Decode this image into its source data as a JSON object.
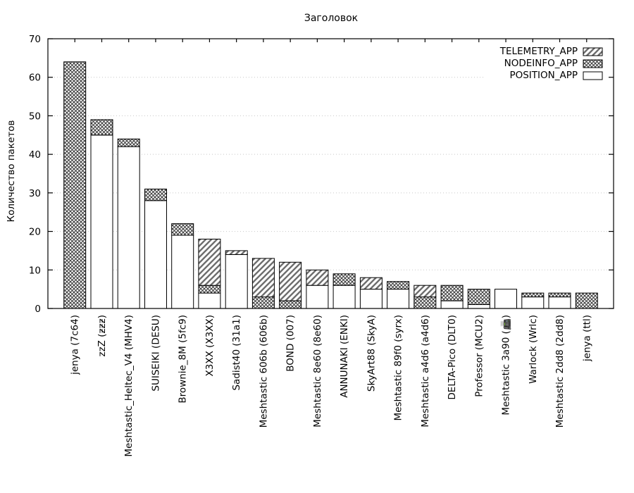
{
  "chart_data": {
    "type": "bar",
    "stacked": true,
    "title": "Заголовок",
    "ylabel": "Количество пакетов",
    "xlabel": "",
    "ylim": [
      0,
      70
    ],
    "yticks": [
      0,
      10,
      20,
      30,
      40,
      50,
      60,
      70
    ],
    "grid": "dotted-horizontal",
    "legend": {
      "position": "top-right",
      "entries": [
        "TELEMETRY_APP",
        "NODEINFO_APP",
        "POSITION_APP"
      ]
    },
    "categories": [
      "jenya (7c64)",
      "zzZ (ƶƶƶ)",
      "Meshtastic_Heltec_V4 (MHV4)",
      "SUISEIKI (DESU)",
      "Brownie_8M (5fc9)",
      "X3XX (X3XX)",
      "Sadist40 (31a1)",
      "Meshtastic 606b (606b)",
      "BOND (007)",
      "Meshtastic 8e60 (8e60)",
      "ANNUNAKI (ENKI)",
      "SkyArt88 (SkyA)",
      "Meshtastic 89f0 (syrx)",
      "Meshtastic a4d6 (a4d6)",
      "DELTA-Pico (DLT0)",
      "Professor (MCU2)",
      "Meshtastic 3a90 (📠)",
      "Warlock (Wrlc)",
      "Meshtastic 2dd8 (2dd8)",
      "jenya (ttl)"
    ],
    "series": [
      {
        "name": "TELEMETRY_APP",
        "pattern": "diagonal-hatch",
        "values": [
          0,
          0,
          0,
          0,
          0,
          12,
          1,
          10,
          10,
          4,
          0,
          3,
          0,
          3,
          0,
          0,
          0,
          0,
          0,
          0
        ]
      },
      {
        "name": "NODEINFO_APP",
        "pattern": "crosshatch",
        "values": [
          64,
          4,
          2,
          3,
          3,
          2,
          0,
          3,
          2,
          0,
          3,
          0,
          2,
          3,
          4,
          4,
          0,
          1,
          1,
          4
        ]
      },
      {
        "name": "POSITION_APP",
        "pattern": "solid-white",
        "values": [
          0,
          45,
          42,
          28,
          19,
          4,
          14,
          0,
          0,
          6,
          6,
          5,
          5,
          0,
          2,
          1,
          5,
          3,
          3,
          0
        ]
      }
    ],
    "stack_order_bottom_to_top": [
      "POSITION_APP",
      "NODEINFO_APP",
      "TELEMETRY_APP"
    ],
    "totals": [
      64,
      49,
      44,
      31,
      22,
      18,
      15,
      13,
      12,
      10,
      9,
      8,
      7,
      6,
      6,
      5,
      5,
      4,
      4,
      4
    ],
    "colors": {
      "outline": "#000000",
      "hatch_line": "#6e6e6e",
      "crosshatch_line": "#3c3c3c",
      "grid": "#c8c8c8",
      "background": "#ffffff",
      "text": "#000000"
    }
  }
}
